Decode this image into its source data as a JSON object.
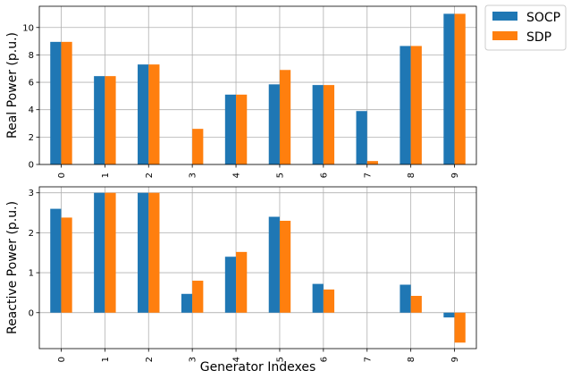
{
  "colors": {
    "socp": "#1f77b4",
    "sdp": "#ff7f0e"
  },
  "legend": {
    "placement": "outside-top-right",
    "entries": [
      "SOCP",
      "SDP"
    ]
  },
  "chart_data": [
    {
      "type": "bar",
      "categories": [
        "0",
        "1",
        "2",
        "3",
        "4",
        "5",
        "6",
        "7",
        "8",
        "9"
      ],
      "series": [
        {
          "name": "SOCP",
          "values": [
            8.95,
            6.45,
            7.3,
            0.0,
            5.1,
            5.85,
            5.8,
            3.9,
            8.65,
            11.0
          ]
        },
        {
          "name": "SDP",
          "values": [
            8.95,
            6.45,
            7.3,
            2.6,
            5.1,
            6.9,
            5.8,
            0.25,
            8.65,
            11.0
          ]
        }
      ],
      "ylabel": "Real Power (p.u.)",
      "xlabel": "",
      "ylim": [
        0,
        11.55
      ],
      "yticks": [
        0,
        2,
        4,
        6,
        8,
        10
      ],
      "grid": true,
      "legend": "outside-top-right"
    },
    {
      "type": "bar",
      "categories": [
        "0",
        "1",
        "2",
        "3",
        "4",
        "5",
        "6",
        "7",
        "8",
        "9"
      ],
      "series": [
        {
          "name": "SOCP",
          "values": [
            2.6,
            3.0,
            3.0,
            0.47,
            1.4,
            2.4,
            0.72,
            0.0,
            0.7,
            -0.12
          ]
        },
        {
          "name": "SDP",
          "values": [
            2.38,
            3.0,
            3.0,
            0.8,
            1.52,
            2.3,
            0.58,
            0.0,
            0.42,
            -0.75
          ]
        }
      ],
      "ylabel": "Reactive Power (p.u.)",
      "xlabel": "Generator Indexes",
      "ylim": [
        -0.9,
        3.15
      ],
      "yticks": [
        0,
        1,
        2,
        3
      ],
      "grid": true,
      "legend": "none"
    }
  ]
}
